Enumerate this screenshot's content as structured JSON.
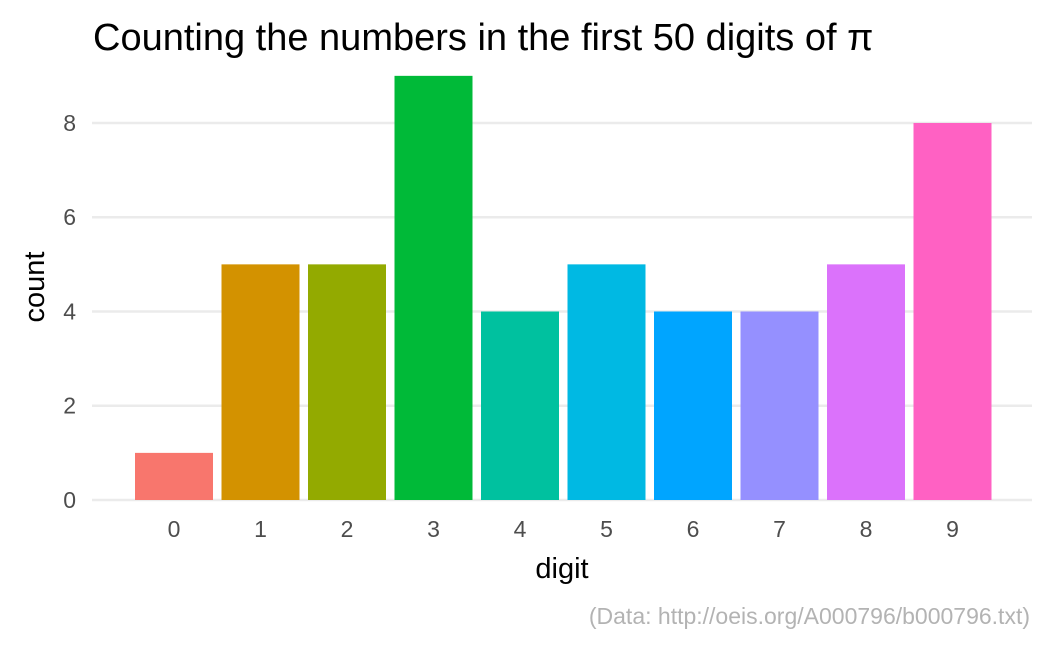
{
  "chart_data": {
    "type": "bar",
    "title": "Counting the numbers in the first 50 digits of π",
    "xlabel": "digit",
    "ylabel": "count",
    "caption": "(Data: http://oeis.org/A000796/b000796.txt)",
    "categories": [
      "0",
      "1",
      "2",
      "3",
      "4",
      "5",
      "6",
      "7",
      "8",
      "9"
    ],
    "values": [
      1,
      5,
      5,
      9,
      4,
      5,
      4,
      4,
      5,
      8
    ],
    "colors": [
      "#F8766D",
      "#D39200",
      "#93AA00",
      "#00BA38",
      "#00C19F",
      "#00B9E3",
      "#00A5FF",
      "#9590FF",
      "#DB72FB",
      "#FF61C3"
    ],
    "ylim": [
      0,
      9.4
    ],
    "yticks": [
      "0",
      "2",
      "4",
      "6",
      "8"
    ],
    "grid": true,
    "legend": "none"
  }
}
